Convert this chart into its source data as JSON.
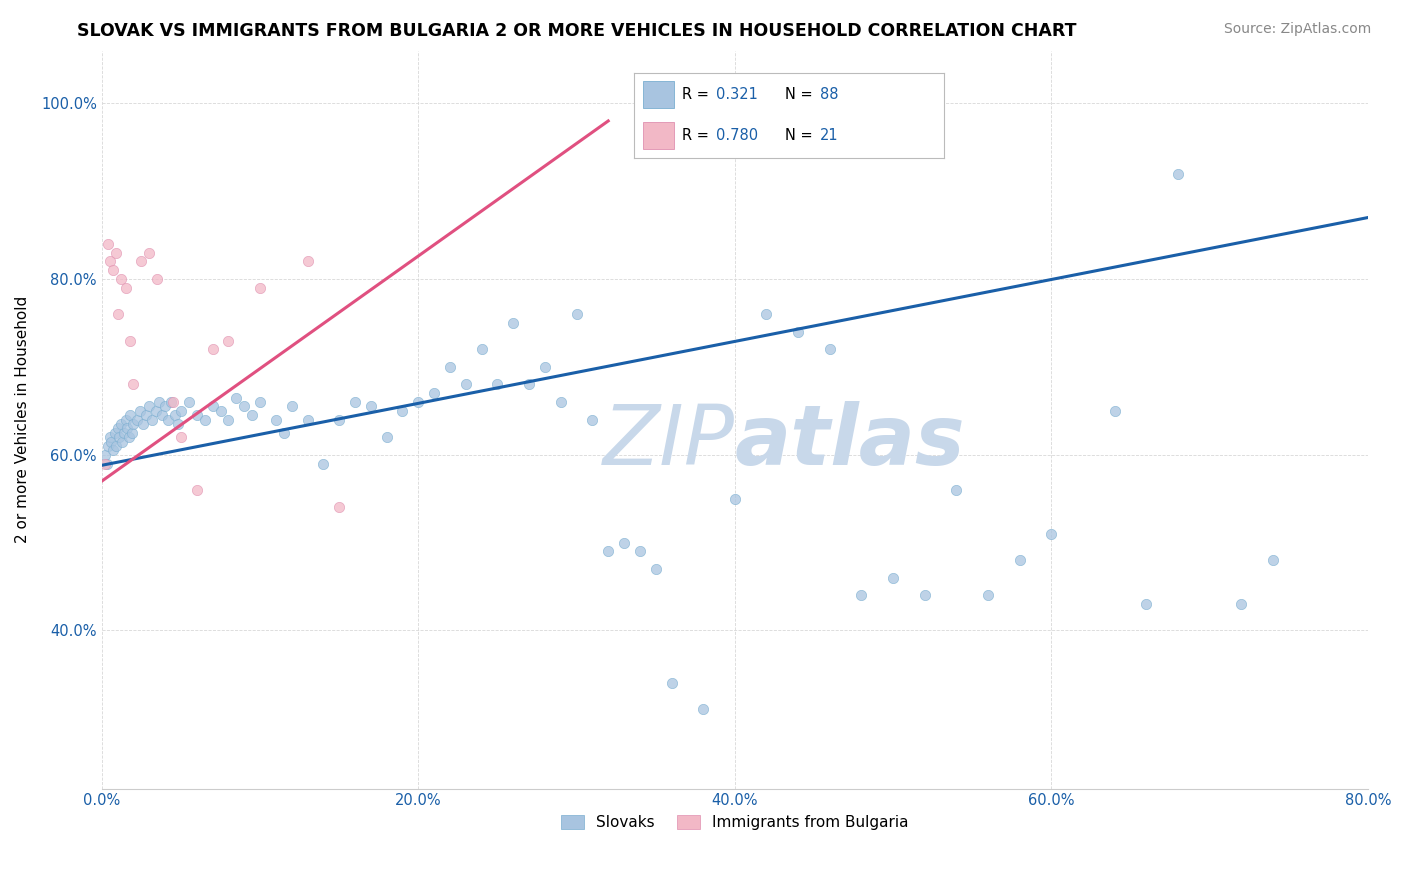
{
  "title": "SLOVAK VS IMMIGRANTS FROM BULGARIA 2 OR MORE VEHICLES IN HOUSEHOLD CORRELATION CHART",
  "source": "Source: ZipAtlas.com",
  "ylabel": "2 or more Vehicles in Household",
  "xmin": 0.0,
  "xmax": 0.8,
  "ymin": 0.22,
  "ymax": 1.06,
  "xtick_vals": [
    0.0,
    0.2,
    0.4,
    0.6,
    0.8
  ],
  "xtick_labels": [
    "0.0%",
    "20.0%",
    "40.0%",
    "60.0%",
    "80.0%"
  ],
  "ytick_vals": [
    0.4,
    0.6,
    0.8,
    1.0
  ],
  "ytick_labels": [
    "40.0%",
    "60.0%",
    "80.0%",
    "100.0%"
  ],
  "bottom_legend": [
    "Slovaks",
    "Immigrants from Bulgaria"
  ],
  "bottom_legend_colors": [
    "#a8c4e0",
    "#f2b8c6"
  ],
  "slovak_scatter_x": [
    0.002,
    0.003,
    0.004,
    0.005,
    0.006,
    0.007,
    0.008,
    0.009,
    0.01,
    0.011,
    0.012,
    0.013,
    0.014,
    0.015,
    0.016,
    0.017,
    0.018,
    0.019,
    0.02,
    0.022,
    0.024,
    0.026,
    0.028,
    0.03,
    0.032,
    0.034,
    0.036,
    0.038,
    0.04,
    0.042,
    0.044,
    0.046,
    0.048,
    0.05,
    0.055,
    0.06,
    0.065,
    0.07,
    0.075,
    0.08,
    0.085,
    0.09,
    0.095,
    0.1,
    0.11,
    0.115,
    0.12,
    0.13,
    0.14,
    0.15,
    0.16,
    0.17,
    0.18,
    0.19,
    0.2,
    0.21,
    0.22,
    0.23,
    0.24,
    0.25,
    0.26,
    0.27,
    0.28,
    0.29,
    0.3,
    0.31,
    0.32,
    0.33,
    0.34,
    0.35,
    0.36,
    0.38,
    0.4,
    0.42,
    0.44,
    0.46,
    0.48,
    0.5,
    0.52,
    0.54,
    0.56,
    0.58,
    0.6,
    0.64,
    0.66,
    0.68,
    0.72,
    0.74
  ],
  "slovak_scatter_y": [
    0.6,
    0.59,
    0.61,
    0.62,
    0.615,
    0.605,
    0.625,
    0.61,
    0.63,
    0.62,
    0.635,
    0.615,
    0.625,
    0.64,
    0.63,
    0.62,
    0.645,
    0.625,
    0.635,
    0.64,
    0.65,
    0.635,
    0.645,
    0.655,
    0.64,
    0.65,
    0.66,
    0.645,
    0.655,
    0.64,
    0.66,
    0.645,
    0.635,
    0.65,
    0.66,
    0.645,
    0.64,
    0.655,
    0.65,
    0.64,
    0.665,
    0.655,
    0.645,
    0.66,
    0.64,
    0.625,
    0.655,
    0.64,
    0.59,
    0.64,
    0.66,
    0.655,
    0.62,
    0.65,
    0.66,
    0.67,
    0.7,
    0.68,
    0.72,
    0.68,
    0.75,
    0.68,
    0.7,
    0.66,
    0.76,
    0.64,
    0.49,
    0.5,
    0.49,
    0.47,
    0.34,
    0.31,
    0.55,
    0.76,
    0.74,
    0.72,
    0.44,
    0.46,
    0.44,
    0.56,
    0.44,
    0.48,
    0.51,
    0.65,
    0.43,
    0.92,
    0.43,
    0.48
  ],
  "bulgarian_scatter_x": [
    0.002,
    0.004,
    0.005,
    0.007,
    0.009,
    0.01,
    0.012,
    0.015,
    0.018,
    0.02,
    0.025,
    0.03,
    0.035,
    0.045,
    0.05,
    0.06,
    0.07,
    0.08,
    0.1,
    0.13,
    0.15
  ],
  "bulgarian_scatter_y": [
    0.59,
    0.84,
    0.82,
    0.81,
    0.83,
    0.76,
    0.8,
    0.79,
    0.73,
    0.68,
    0.82,
    0.83,
    0.8,
    0.66,
    0.62,
    0.56,
    0.72,
    0.73,
    0.79,
    0.82,
    0.54
  ],
  "slovak_line_x": [
    0.0,
    0.8
  ],
  "slovak_line_y": [
    0.588,
    0.87
  ],
  "bulgarian_line_x": [
    0.0,
    0.32
  ],
  "bulgarian_line_y": [
    0.57,
    0.98
  ],
  "scatter_size": 55,
  "scatter_alpha": 0.75,
  "scatter_color_slovak": "#a8c4e0",
  "scatter_edge_slovak": "#7aaed0",
  "scatter_color_bulgarian": "#f2b8c6",
  "scatter_edge_bulgarian": "#e090b0",
  "line_color_slovak": "#1a5fa8",
  "line_color_bulgarian": "#e05080",
  "background_color": "#ffffff",
  "grid_color": "#d8d8d8",
  "title_fontsize": 12.5,
  "axis_fontsize": 11,
  "tick_fontsize": 10.5,
  "source_fontsize": 10,
  "legend_r1": "R =  0.321",
  "legend_n1": "N = 88",
  "legend_r2": "R =  0.780",
  "legend_n2": "N = 21",
  "legend_color1": "#a8c4e0",
  "legend_color2": "#f2b8c6",
  "watermark_zip": "ZIP",
  "watermark_atlas": "atlas",
  "watermark_color": "#c8d8ea",
  "watermark_fontsize": 60
}
